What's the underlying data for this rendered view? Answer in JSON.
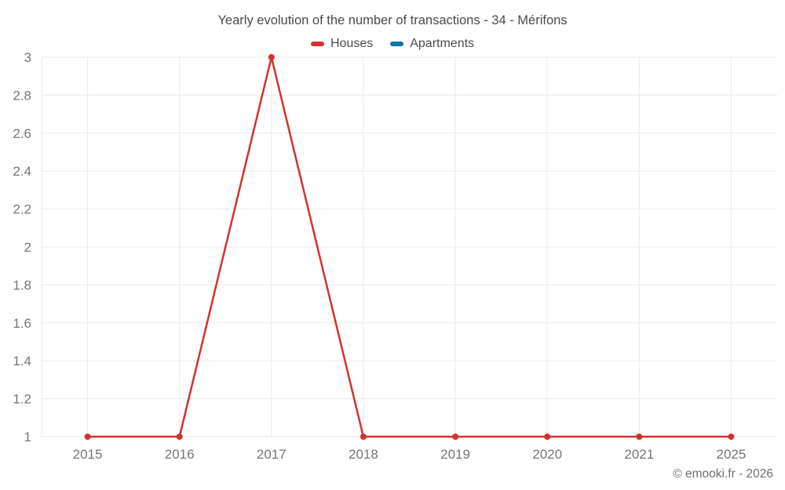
{
  "header": {
    "title": "Yearly evolution of the number of transactions - 34 - Mérifons"
  },
  "legend": {
    "items": [
      {
        "label": "Houses",
        "color": "#d5312c"
      },
      {
        "label": "Apartments",
        "color": "#0e73a8"
      }
    ]
  },
  "footer": {
    "copyright": "© emooki.fr - 2026"
  },
  "colors": {
    "grid": "#e9e9e9",
    "axis_label": "#757575",
    "title_text": "#4a4a4a",
    "houses_red": "#d5312c",
    "apartments_blue": "#0e73a8"
  },
  "chart_data": {
    "type": "line",
    "title": "Yearly evolution of the number of transactions - 34 - Mérifons",
    "categories": [
      "2015",
      "2016",
      "2017",
      "2018",
      "2019",
      "2020",
      "2021",
      "2025"
    ],
    "series": [
      {
        "name": "Houses",
        "color": "#d5312c",
        "values": [
          1,
          1,
          3,
          1,
          1,
          1,
          1,
          1
        ]
      },
      {
        "name": "Apartments",
        "color": "#0e73a8",
        "values": []
      }
    ],
    "xlabel": "",
    "ylabel": "",
    "ylim": [
      1,
      3
    ],
    "yticks": [
      1,
      1.2,
      1.4,
      1.6,
      1.8,
      2,
      2.2,
      2.4,
      2.6,
      2.8,
      3
    ],
    "ytick_labels": [
      "1",
      "1.2",
      "1.4",
      "1.6",
      "1.8",
      "2",
      "2.2",
      "2.4",
      "2.6",
      "2.8",
      "3"
    ],
    "grid": true,
    "legend_position": "top",
    "marker": "circle"
  }
}
